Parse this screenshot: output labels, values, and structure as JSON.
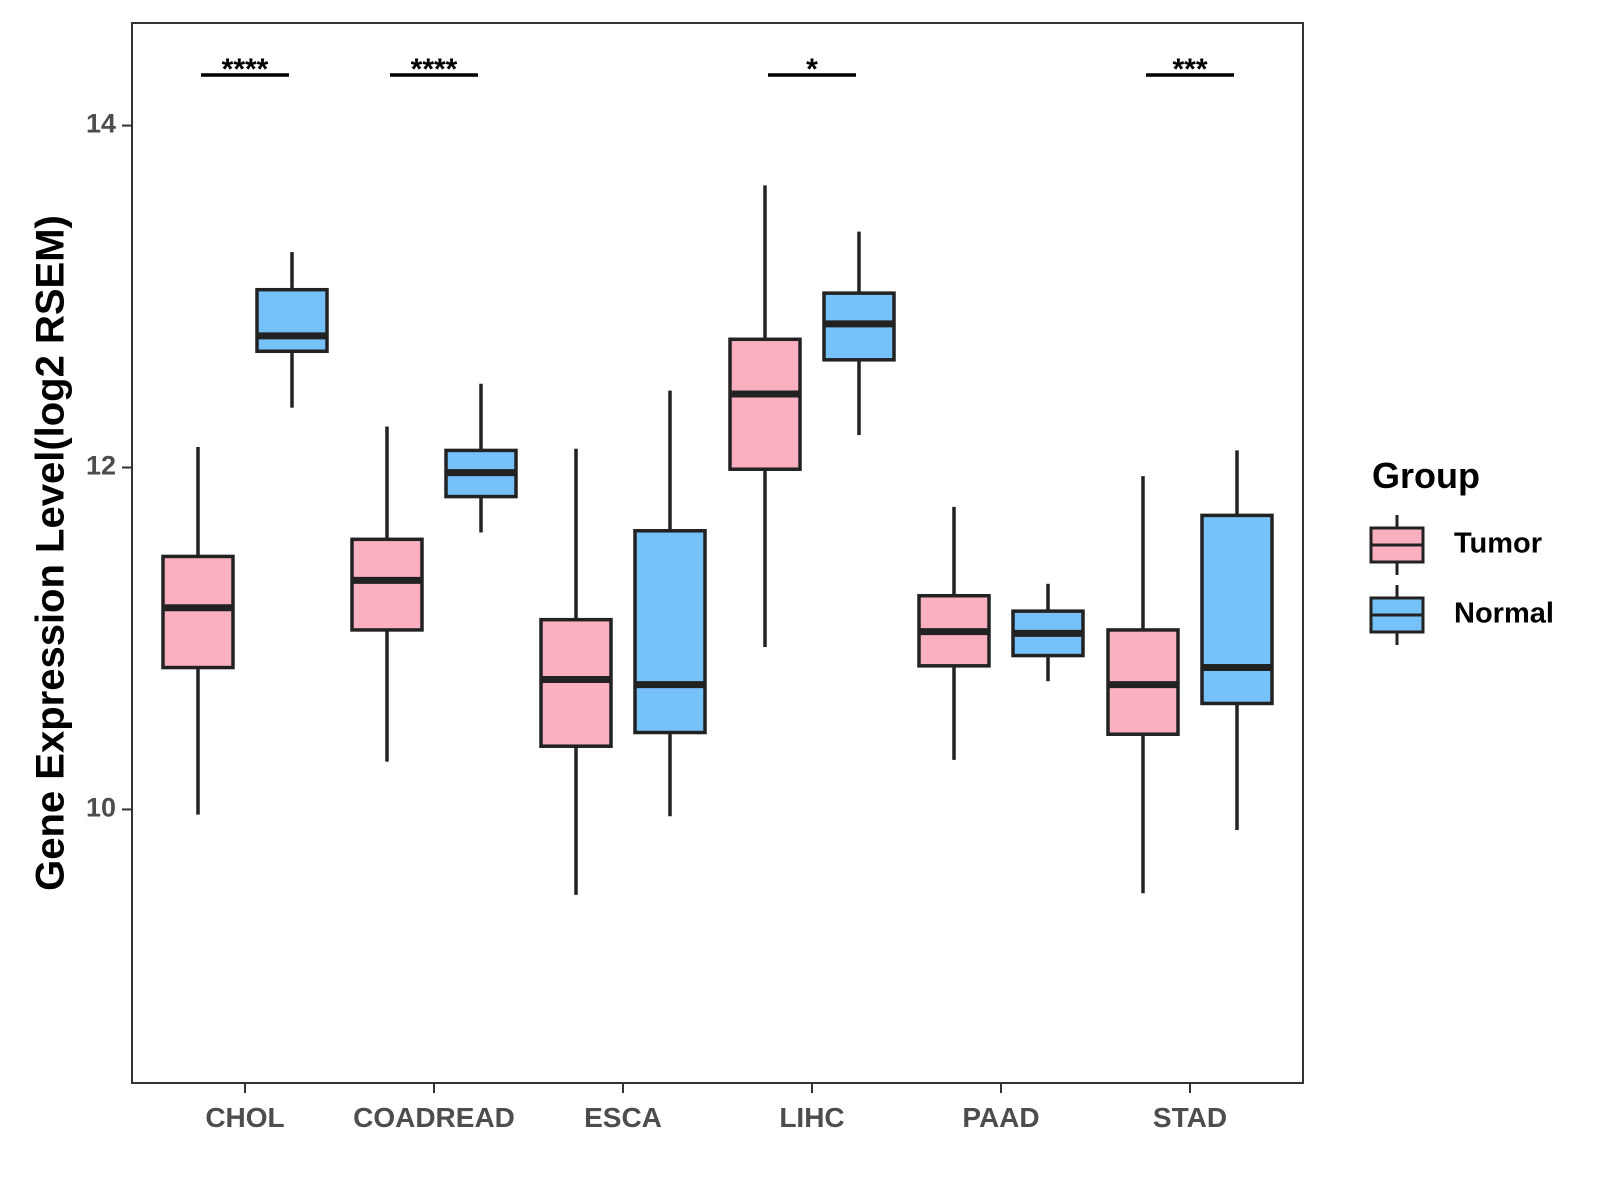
{
  "chart_data": {
    "type": "boxplot",
    "title": "",
    "xlabel": "",
    "ylabel": "Gene Expression Level(log2 RSEM)",
    "ylim": [
      8.4,
      14.6
    ],
    "yticks": [
      10,
      12,
      14
    ],
    "categories": [
      "CHOL",
      "COADREAD",
      "ESCA",
      "LIHC",
      "PAAD",
      "STAD"
    ],
    "legend": {
      "title": "Group",
      "position": "right"
    },
    "series": [
      {
        "name": "Tumor",
        "color": "#FAB0C1",
        "boxes": [
          {
            "category": "CHOL",
            "min": 9.97,
            "q1": 10.83,
            "median": 11.18,
            "q3": 11.48,
            "max": 12.12
          },
          {
            "category": "COADREAD",
            "min": 10.28,
            "q1": 11.05,
            "median": 11.34,
            "q3": 11.58,
            "max": 12.24
          },
          {
            "category": "ESCA",
            "min": 9.5,
            "q1": 10.37,
            "median": 10.76,
            "q3": 11.11,
            "max": 12.11
          },
          {
            "category": "LIHC",
            "min": 10.95,
            "q1": 11.99,
            "median": 12.43,
            "q3": 12.75,
            "max": 13.65
          },
          {
            "category": "PAAD",
            "min": 10.29,
            "q1": 10.84,
            "median": 11.04,
            "q3": 11.25,
            "max": 11.77
          },
          {
            "category": "STAD",
            "min": 9.51,
            "q1": 10.44,
            "median": 10.73,
            "q3": 11.05,
            "max": 11.95
          }
        ]
      },
      {
        "name": "Normal",
        "color": "#76C1F7",
        "boxes": [
          {
            "category": "CHOL",
            "min": 12.35,
            "q1": 12.68,
            "median": 12.77,
            "q3": 13.04,
            "max": 13.26
          },
          {
            "category": "COADREAD",
            "min": 11.62,
            "q1": 11.83,
            "median": 11.97,
            "q3": 12.1,
            "max": 12.49
          },
          {
            "category": "ESCA",
            "min": 9.96,
            "q1": 10.45,
            "median": 10.73,
            "q3": 11.63,
            "max": 12.45
          },
          {
            "category": "LIHC",
            "min": 12.19,
            "q1": 12.63,
            "median": 12.84,
            "q3": 13.02,
            "max": 13.38
          },
          {
            "category": "PAAD",
            "min": 10.75,
            "q1": 10.9,
            "median": 11.03,
            "q3": 11.16,
            "max": 11.32
          },
          {
            "category": "STAD",
            "min": 9.88,
            "q1": 10.62,
            "median": 10.83,
            "q3": 11.72,
            "max": 12.1
          }
        ]
      }
    ],
    "annotations": [
      {
        "category": "CHOL",
        "label": "****"
      },
      {
        "category": "COADREAD",
        "label": "****"
      },
      {
        "category": "LIHC",
        "label": "*"
      },
      {
        "category": "STAD",
        "label": "***"
      }
    ]
  }
}
